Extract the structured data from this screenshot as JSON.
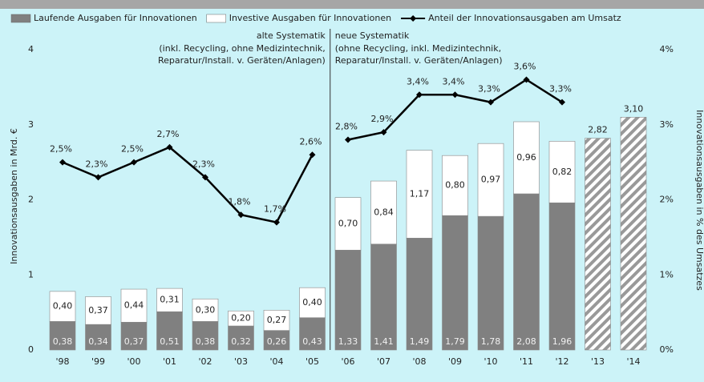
{
  "chart_data": {
    "type": "bar",
    "ylabel": "Innovationsausgaben in Mrd. €",
    "y2label": "Innovationsausgaben in % des Umsatzes",
    "categories": [
      "'98",
      "'99",
      "'00",
      "'01",
      "'02",
      "'03",
      "'04",
      "'05",
      "'06",
      "'07",
      "'08",
      "'09",
      "'10",
      "'11",
      "'12",
      "'13",
      "'14"
    ],
    "series": [
      {
        "name": "Laufende Ausgaben für Innovationen",
        "color": "#808080",
        "stacked": true,
        "values": [
          0.38,
          0.34,
          0.37,
          0.51,
          0.38,
          0.32,
          0.26,
          0.43,
          1.33,
          1.41,
          1.49,
          1.79,
          1.78,
          2.08,
          1.96,
          null,
          null
        ],
        "value_labels": [
          "0,38",
          "0,34",
          "0,37",
          "0,51",
          "0,38",
          "0,32",
          "0,26",
          "0,43",
          "1,33",
          "1,41",
          "1,49",
          "1,79",
          "1,78",
          "2,08",
          "1,96",
          null,
          null
        ]
      },
      {
        "name": "Investive Ausgaben für Innovationen",
        "color": "#ffffff",
        "stacked": true,
        "values": [
          0.4,
          0.37,
          0.44,
          0.31,
          0.3,
          0.2,
          0.27,
          0.4,
          0.7,
          0.84,
          1.17,
          0.8,
          0.97,
          0.96,
          0.82,
          null,
          null
        ],
        "value_labels": [
          "0,40",
          "0,37",
          "0,44",
          "0,31",
          "0,30",
          "0,20",
          "0,27",
          "0,40",
          "0,70",
          "0,84",
          "1,17",
          "0,80",
          "0,97",
          "0,96",
          "0,82",
          null,
          null
        ]
      },
      {
        "name": "Anteil der Innovationsausgaben am Umsatz",
        "color": "#000000",
        "type": "line",
        "axis": "y2",
        "values": [
          2.5,
          2.3,
          2.5,
          2.7,
          2.3,
          1.8,
          1.7,
          2.6,
          2.8,
          2.9,
          3.4,
          3.4,
          3.3,
          3.6,
          3.3,
          null,
          null
        ],
        "value_labels": [
          "2,5%",
          "2,3%",
          "2,5%",
          "2,7%",
          "2,3%",
          "1,8%",
          "1,7%",
          "2,6%",
          "2,8%",
          "2,9%",
          "3,4%",
          "3,4%",
          "3,3%",
          "3,6%",
          "3,3%",
          null,
          null
        ]
      }
    ],
    "planned": {
      "values": [
        null,
        null,
        null,
        null,
        null,
        null,
        null,
        null,
        null,
        null,
        null,
        null,
        null,
        null,
        null,
        2.82,
        3.1
      ],
      "value_labels": [
        null,
        null,
        null,
        null,
        null,
        null,
        null,
        null,
        null,
        null,
        null,
        null,
        null,
        null,
        null,
        "2,82",
        "3,10"
      ]
    },
    "systems": [
      {
        "label": "alte Systematik",
        "note": [
          "(inkl. Recycling, ohne Medizintechnik,",
          "Reparatur/Install. v. Geräten/Anlagen)"
        ],
        "from": 0,
        "to": 7
      },
      {
        "label": "neue Systematik",
        "note": [
          "(ohne Recycling, inkl. Medizintechnik,",
          "Reparatur/Install. v. Geräten/Anlagen)"
        ],
        "from": 8,
        "to": 16
      }
    ],
    "ylim": [
      0,
      4
    ],
    "yticks": [
      0,
      1,
      2,
      3,
      4
    ],
    "y2lim": [
      0,
      4
    ],
    "y2ticks": [
      {
        "value": 0,
        "label": "0%"
      },
      {
        "value": 1,
        "label": "1%"
      },
      {
        "value": 2,
        "label": "2%"
      },
      {
        "value": 3,
        "label": "3%"
      },
      {
        "value": 4,
        "label": "4%"
      }
    ],
    "legend": "top"
  }
}
